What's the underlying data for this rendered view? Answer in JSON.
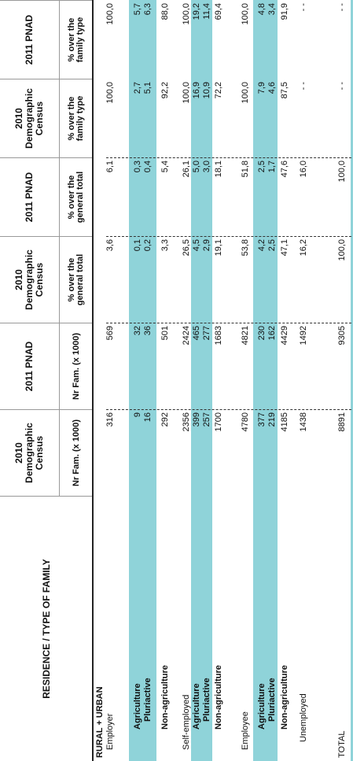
{
  "table": {
    "header": {
      "title": "RESIDENCE / TYPE OF FAMILY",
      "columns": [
        {
          "group": "2010 Demographic Census",
          "sub": "Nr Fam. (x 1000)"
        },
        {
          "group": "2011 PNAD",
          "sub": "Nr Fam. (x 1000)"
        },
        {
          "group": "2010 Demographic Census",
          "sub": "% over the general total"
        },
        {
          "group": "2011 PNAD",
          "sub": "% over the general total"
        },
        {
          "group": "2010 Demographic Census",
          "sub": "% over the family type"
        },
        {
          "group": "2011 PNAD",
          "sub": "% over the family type"
        }
      ]
    },
    "rows": [
      {
        "label": "RURAL + URBAN",
        "cells": []
      },
      {
        "label": "Employer",
        "cells": [
          "316",
          "569",
          "3,6",
          "6,1",
          "100,0",
          "100,0"
        ]
      },
      {
        "label": "Agriculture",
        "cells": [
          "9",
          "32",
          "0,1",
          "0,3",
          "2,7",
          "5,7"
        ]
      },
      {
        "label": "Pluriactive",
        "cells": [
          "16",
          "36",
          "0,2",
          "0,4",
          "5,1",
          "6,3"
        ]
      },
      {
        "label": "Non-agriculture",
        "cells": [
          "292",
          "501",
          "3,3",
          "5,4",
          "92,2",
          "88,0"
        ]
      },
      {
        "label": "Self-employed",
        "cells": [
          "2356",
          "2424",
          "26,5",
          "26,1",
          "100,0",
          "100,0"
        ]
      },
      {
        "label": "Agriculture",
        "cells": [
          "399",
          "465",
          "4,5",
          "5,0",
          "16,9",
          "19,2"
        ]
      },
      {
        "label": "Pluriactive",
        "cells": [
          "257",
          "277",
          "2,9",
          "3,0",
          "10,9",
          "11,4"
        ]
      },
      {
        "label": "Non-agriculture",
        "cells": [
          "1700",
          "1683",
          "19,1",
          "18,1",
          "72,2",
          "69,4"
        ]
      },
      {
        "label": "Employee",
        "cells": [
          "4780",
          "4821",
          "53,8",
          "51,8",
          "100,0",
          "100,0"
        ]
      },
      {
        "label": "Agriculture",
        "cells": [
          "377",
          "230",
          "4,2",
          "2,5",
          "7,9",
          "4,8"
        ]
      },
      {
        "label": "Pluriactive",
        "cells": [
          "219",
          "162",
          "2,5",
          "1,7",
          "4,6",
          "3,4"
        ]
      },
      {
        "label": "Non-agriculture",
        "cells": [
          "4185",
          "4429",
          "47,1",
          "47,6",
          "87,5",
          "91,9"
        ]
      },
      {
        "label": "Unemployed",
        "cells": [
          "1438",
          "1492",
          "16,2",
          "16,0",
          "- -",
          "- -"
        ]
      },
      {
        "label": "TOTAL",
        "cells": [
          "8891",
          "9305",
          "100,0",
          "100,0",
          "- -",
          "- -"
        ]
      }
    ]
  }
}
